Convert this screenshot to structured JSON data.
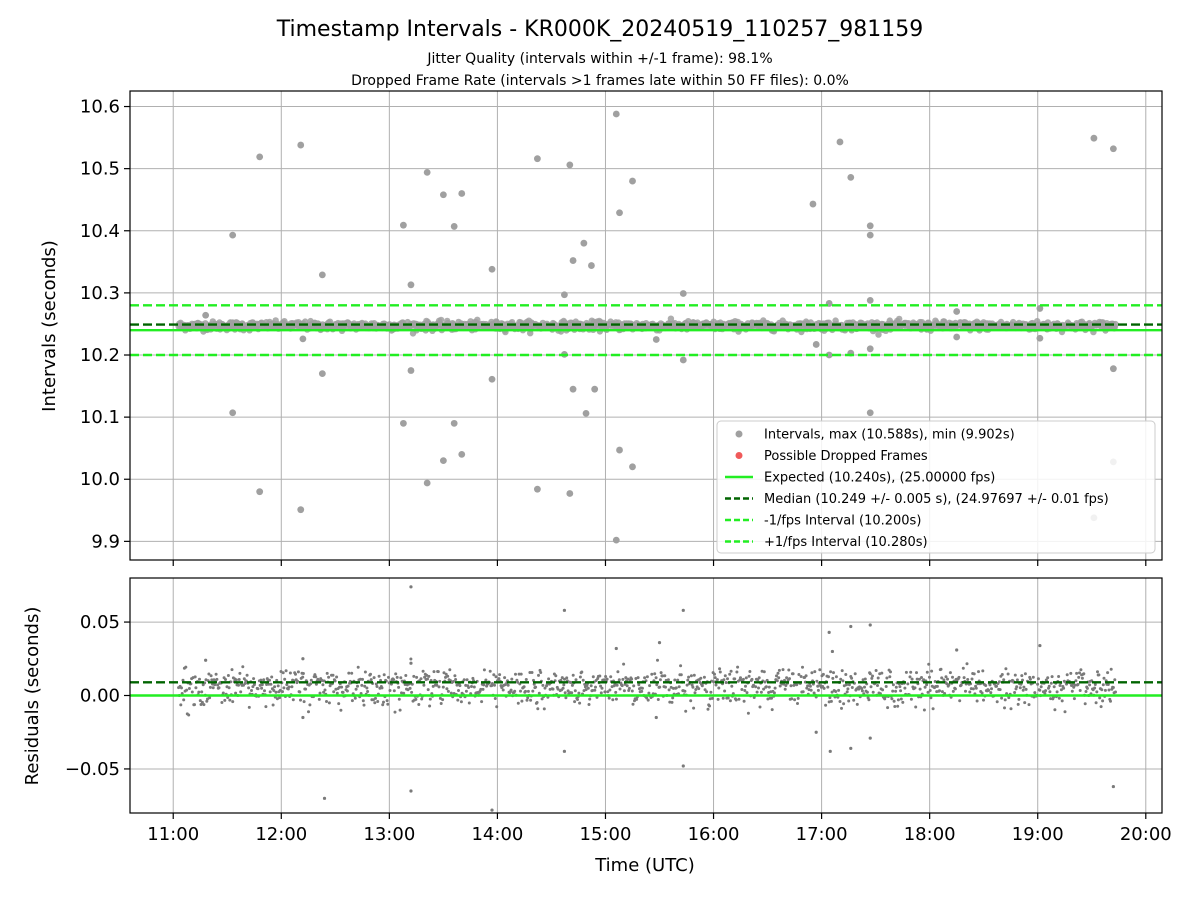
{
  "chart_data": {
    "type": "scatter",
    "title": "Timestamp Intervals - KR000K_20240519_110257_981159",
    "subtitle_lines": [
      "Jitter Quality (intervals within +/-1 frame): 98.1%",
      "Dropped Frame Rate (intervals >1 frames late within 50 FF files): 0.0%"
    ],
    "xlabel": "Time (UTC)",
    "x_tick_labels": [
      "11:00",
      "12:00",
      "13:00",
      "14:00",
      "15:00",
      "16:00",
      "17:00",
      "18:00",
      "19:00",
      "20:00"
    ],
    "x_ticks_hours": [
      11,
      12,
      13,
      14,
      15,
      16,
      17,
      18,
      19,
      20
    ],
    "xlim_hours": [
      10.6,
      20.15
    ],
    "top_panel": {
      "ylabel": "Intervals (seconds)",
      "ylim": [
        9.87,
        10.625
      ],
      "y_ticks": [
        9.9,
        10.0,
        10.1,
        10.2,
        10.3,
        10.4,
        10.5,
        10.6
      ],
      "y_tick_labels": [
        "9.9",
        "10.0",
        "10.1",
        "10.2",
        "10.3",
        "10.4",
        "10.5",
        "10.6"
      ],
      "grid": true,
      "lines": [
        {
          "name": "Expected (10.240s), (25.00000 fps)",
          "y": 10.24,
          "style": "solid",
          "color": "#22ee22"
        },
        {
          "name": "Median (10.249 +/- 0.005 s), (24.97697 +/- 0.01 fps)",
          "y": 10.249,
          "style": "dashed",
          "color": "#006400"
        },
        {
          "name": "-1/fps Interval (10.200s)",
          "y": 10.2,
          "style": "dashed",
          "color": "#22ee22"
        },
        {
          "name": "+1/fps Interval (10.280s)",
          "y": 10.28,
          "style": "dashed",
          "color": "#22ee22"
        }
      ],
      "scatter_series": [
        {
          "name": "Intervals, max (10.588s), min (9.902s)",
          "color": "#a0a0a0"
        },
        {
          "name": "Possible Dropped Frames",
          "color": "#f05a5a"
        }
      ],
      "band_x_range_hours": [
        11.05,
        19.72
      ],
      "band_center": 10.247,
      "outliers": [
        [
          11.3,
          10.264
        ],
        [
          11.55,
          10.393
        ],
        [
          11.55,
          10.107
        ],
        [
          11.8,
          10.519
        ],
        [
          11.8,
          9.98
        ],
        [
          12.18,
          10.538
        ],
        [
          12.18,
          9.951
        ],
        [
          12.2,
          10.226
        ],
        [
          12.38,
          10.329
        ],
        [
          12.38,
          10.17
        ],
        [
          13.13,
          10.409
        ],
        [
          13.13,
          10.09
        ],
        [
          13.2,
          10.313
        ],
        [
          13.2,
          10.175
        ],
        [
          13.35,
          10.494
        ],
        [
          13.35,
          9.994
        ],
        [
          13.5,
          10.458
        ],
        [
          13.5,
          10.03
        ],
        [
          13.6,
          10.407
        ],
        [
          13.6,
          10.09
        ],
        [
          13.67,
          10.46
        ],
        [
          13.67,
          10.04
        ],
        [
          13.95,
          10.338
        ],
        [
          13.95,
          10.161
        ],
        [
          14.37,
          10.516
        ],
        [
          14.37,
          9.984
        ],
        [
          14.62,
          10.297
        ],
        [
          14.62,
          10.201
        ],
        [
          14.67,
          10.506
        ],
        [
          14.67,
          9.977
        ],
        [
          14.7,
          10.352
        ],
        [
          14.7,
          10.145
        ],
        [
          14.8,
          10.38
        ],
        [
          14.82,
          10.106
        ],
        [
          14.87,
          10.344
        ],
        [
          14.9,
          10.145
        ],
        [
          15.1,
          10.588
        ],
        [
          15.1,
          9.902
        ],
        [
          15.13,
          10.429
        ],
        [
          15.13,
          10.047
        ],
        [
          15.25,
          10.48
        ],
        [
          15.25,
          10.02
        ],
        [
          15.47,
          10.225
        ],
        [
          15.72,
          10.299
        ],
        [
          15.72,
          10.192
        ],
        [
          16.92,
          10.443
        ],
        [
          16.95,
          10.217
        ],
        [
          17.07,
          10.283
        ],
        [
          17.07,
          10.2
        ],
        [
          17.17,
          10.543
        ],
        [
          17.27,
          10.486
        ],
        [
          17.27,
          10.203
        ],
        [
          17.45,
          10.408
        ],
        [
          17.45,
          10.393
        ],
        [
          17.45,
          10.288
        ],
        [
          17.45,
          10.21
        ],
        [
          17.45,
          10.107
        ],
        [
          18.25,
          10.27
        ],
        [
          18.25,
          10.229
        ],
        [
          19.02,
          10.275
        ],
        [
          19.02,
          10.227
        ],
        [
          19.52,
          10.549
        ],
        [
          19.52,
          9.938
        ],
        [
          19.7,
          10.532
        ],
        [
          19.7,
          10.178
        ],
        [
          19.7,
          10.028
        ]
      ]
    },
    "bottom_panel": {
      "ylabel": "Residuals (seconds)",
      "ylim": [
        -0.08,
        0.08
      ],
      "y_ticks": [
        -0.05,
        0.0,
        0.05
      ],
      "y_tick_labels": [
        "−0.05",
        "0.00",
        "0.05"
      ],
      "grid": true,
      "lines": [
        {
          "name": "Expected",
          "y": 0.0,
          "style": "solid",
          "color": "#22ee22"
        },
        {
          "name": "Median",
          "y": 0.009,
          "style": "dashed",
          "color": "#006400"
        }
      ],
      "point_color": "#7a7a7a",
      "band_x_range_hours": [
        11.05,
        19.72
      ],
      "band_levels": [
        0.0,
        0.009
      ],
      "outliers": [
        [
          11.3,
          0.024
        ],
        [
          12.2,
          0.025
        ],
        [
          12.2,
          -0.015
        ],
        [
          12.4,
          -0.07
        ],
        [
          13.2,
          0.074
        ],
        [
          13.2,
          0.022
        ],
        [
          13.2,
          -0.065
        ],
        [
          13.95,
          -0.078
        ],
        [
          14.62,
          0.058
        ],
        [
          14.62,
          -0.038
        ],
        [
          15.1,
          0.032
        ],
        [
          15.5,
          0.036
        ],
        [
          15.47,
          -0.015
        ],
        [
          15.72,
          0.058
        ],
        [
          15.72,
          -0.048
        ],
        [
          16.95,
          -0.025
        ],
        [
          17.07,
          0.043
        ],
        [
          17.08,
          -0.038
        ],
        [
          17.1,
          0.03
        ],
        [
          17.27,
          0.047
        ],
        [
          17.27,
          -0.036
        ],
        [
          17.45,
          0.048
        ],
        [
          17.45,
          -0.029
        ],
        [
          18.25,
          0.031
        ],
        [
          19.02,
          0.034
        ],
        [
          19.7,
          -0.062
        ]
      ]
    }
  }
}
